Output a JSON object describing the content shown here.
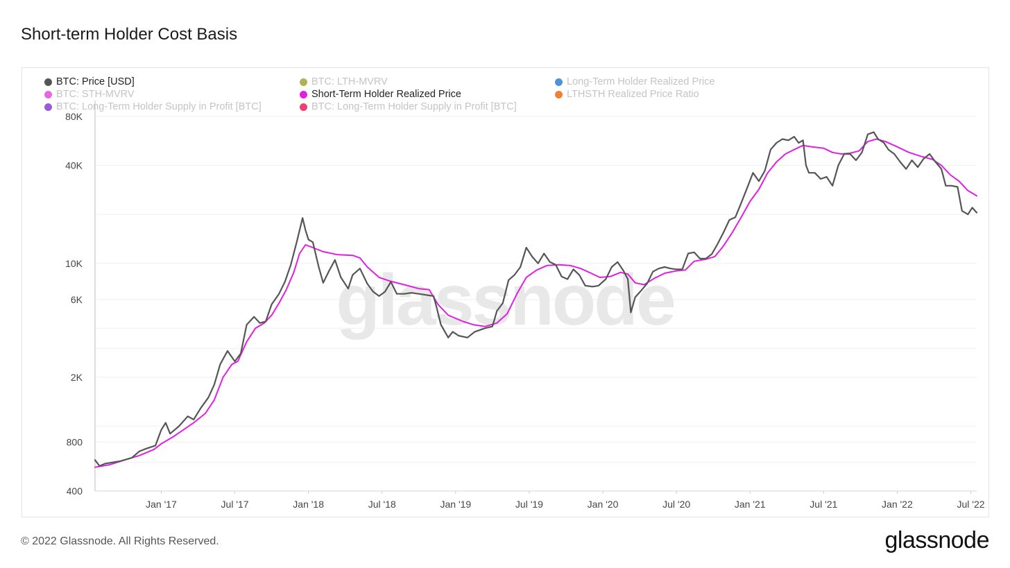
{
  "title": "Short-term Holder Cost Basis",
  "footer": "© 2022 Glassnode. All Rights Reserved.",
  "brand": "glassnode",
  "watermark": "glassnode",
  "legend": [
    {
      "label": "BTC: Price [USD]",
      "color": "#555555",
      "active": true
    },
    {
      "label": "BTC: LTH-MVRV",
      "color": "#a3a33a",
      "active": false
    },
    {
      "label": "Long-Term Holder Realized Price",
      "color": "#2f7fd6",
      "active": false
    },
    {
      "label": "BTC: STH-MVRV",
      "color": "#e04ddb",
      "active": false
    },
    {
      "label": "Short-Term Holder Realized Price",
      "color": "#e21ee3",
      "active": true
    },
    {
      "label": "LTHSTH Realized Price Ratio",
      "color": "#f06a13",
      "active": false
    },
    {
      "label": "BTC: Long-Term Holder Supply in Profit [BTC]",
      "color": "#8a3fd1",
      "active": false
    },
    {
      "label": "BTC: Long-Term Holder Supply in Profit [BTC]",
      "color": "#e81f5c",
      "active": false
    }
  ],
  "chart_data": {
    "type": "line",
    "title": "Short-term Holder Cost Basis",
    "yscale": "log",
    "ylim": [
      400,
      100000
    ],
    "xlim": [
      "2016-08",
      "2022-07"
    ],
    "yticks": [
      {
        "value": 400,
        "label": "400"
      },
      {
        "value": 800,
        "label": "800"
      },
      {
        "value": 2000,
        "label": "2K"
      },
      {
        "value": 6000,
        "label": "6K"
      },
      {
        "value": 10000,
        "label": "10K"
      },
      {
        "value": 40000,
        "label": "40K"
      },
      {
        "value": 80000,
        "label": "80K"
      }
    ],
    "xticks": [
      {
        "value": 2017.0,
        "label": "Jan '17"
      },
      {
        "value": 2017.5,
        "label": "Jul '17"
      },
      {
        "value": 2018.0,
        "label": "Jan '18"
      },
      {
        "value": 2018.5,
        "label": "Jul '18"
      },
      {
        "value": 2019.0,
        "label": "Jan '19"
      },
      {
        "value": 2019.5,
        "label": "Jul '19"
      },
      {
        "value": 2020.0,
        "label": "Jan '20"
      },
      {
        "value": 2020.5,
        "label": "Jul '20"
      },
      {
        "value": 2021.0,
        "label": "Jan '21"
      },
      {
        "value": 2021.5,
        "label": "Jul '21"
      },
      {
        "value": 2022.0,
        "label": "Jan '22"
      },
      {
        "value": 2022.5,
        "label": "Jul '22"
      }
    ],
    "series": [
      {
        "name": "BTC: Price [USD]",
        "color": "#555555",
        "points": [
          [
            2016.55,
            620
          ],
          [
            2016.58,
            570
          ],
          [
            2016.62,
            590
          ],
          [
            2016.67,
            600
          ],
          [
            2016.72,
            610
          ],
          [
            2016.8,
            640
          ],
          [
            2016.85,
            700
          ],
          [
            2016.9,
            730
          ],
          [
            2016.96,
            760
          ],
          [
            2017.0,
            950
          ],
          [
            2017.03,
            1050
          ],
          [
            2017.06,
            900
          ],
          [
            2017.12,
            1000
          ],
          [
            2017.18,
            1150
          ],
          [
            2017.22,
            1100
          ],
          [
            2017.27,
            1300
          ],
          [
            2017.32,
            1500
          ],
          [
            2017.36,
            1800
          ],
          [
            2017.4,
            2400
          ],
          [
            2017.45,
            2900
          ],
          [
            2017.5,
            2500
          ],
          [
            2017.54,
            2800
          ],
          [
            2017.58,
            4200
          ],
          [
            2017.63,
            4700
          ],
          [
            2017.67,
            4300
          ],
          [
            2017.71,
            4400
          ],
          [
            2017.75,
            5600
          ],
          [
            2017.8,
            6500
          ],
          [
            2017.84,
            7700
          ],
          [
            2017.88,
            9800
          ],
          [
            2017.92,
            13500
          ],
          [
            2017.96,
            19000
          ],
          [
            2017.98,
            16000
          ],
          [
            2018.0,
            14000
          ],
          [
            2018.03,
            13500
          ],
          [
            2018.07,
            9500
          ],
          [
            2018.1,
            7600
          ],
          [
            2018.14,
            9000
          ],
          [
            2018.18,
            10500
          ],
          [
            2018.22,
            8200
          ],
          [
            2018.27,
            7000
          ],
          [
            2018.3,
            8500
          ],
          [
            2018.35,
            9300
          ],
          [
            2018.4,
            7500
          ],
          [
            2018.44,
            6700
          ],
          [
            2018.48,
            6300
          ],
          [
            2018.52,
            6700
          ],
          [
            2018.56,
            7700
          ],
          [
            2018.6,
            6500
          ],
          [
            2018.65,
            6500
          ],
          [
            2018.7,
            6600
          ],
          [
            2018.75,
            6500
          ],
          [
            2018.8,
            6400
          ],
          [
            2018.85,
            6300
          ],
          [
            2018.87,
            5400
          ],
          [
            2018.9,
            4200
          ],
          [
            2018.95,
            3500
          ],
          [
            2018.98,
            3800
          ],
          [
            2019.02,
            3600
          ],
          [
            2019.08,
            3500
          ],
          [
            2019.13,
            3800
          ],
          [
            2019.2,
            4000
          ],
          [
            2019.25,
            4100
          ],
          [
            2019.28,
            5100
          ],
          [
            2019.32,
            5700
          ],
          [
            2019.36,
            7900
          ],
          [
            2019.4,
            8500
          ],
          [
            2019.44,
            9500
          ],
          [
            2019.48,
            12500
          ],
          [
            2019.52,
            11000
          ],
          [
            2019.56,
            10000
          ],
          [
            2019.6,
            11500
          ],
          [
            2019.64,
            10200
          ],
          [
            2019.68,
            9800
          ],
          [
            2019.72,
            8300
          ],
          [
            2019.76,
            8000
          ],
          [
            2019.8,
            9200
          ],
          [
            2019.84,
            8500
          ],
          [
            2019.88,
            7300
          ],
          [
            2019.93,
            7200
          ],
          [
            2019.97,
            7300
          ],
          [
            2020.02,
            8000
          ],
          [
            2020.06,
            9500
          ],
          [
            2020.1,
            10200
          ],
          [
            2020.14,
            9000
          ],
          [
            2020.17,
            8000
          ],
          [
            2020.19,
            5000
          ],
          [
            2020.22,
            6200
          ],
          [
            2020.26,
            6800
          ],
          [
            2020.3,
            7500
          ],
          [
            2020.34,
            8900
          ],
          [
            2020.38,
            9300
          ],
          [
            2020.42,
            9500
          ],
          [
            2020.46,
            9300
          ],
          [
            2020.5,
            9200
          ],
          [
            2020.54,
            9200
          ],
          [
            2020.58,
            11500
          ],
          [
            2020.62,
            11700
          ],
          [
            2020.66,
            10700
          ],
          [
            2020.7,
            10700
          ],
          [
            2020.74,
            11400
          ],
          [
            2020.78,
            13200
          ],
          [
            2020.82,
            15500
          ],
          [
            2020.86,
            18500
          ],
          [
            2020.9,
            19200
          ],
          [
            2020.94,
            23500
          ],
          [
            2020.98,
            29000
          ],
          [
            2021.02,
            36000
          ],
          [
            2021.06,
            32000
          ],
          [
            2021.1,
            37000
          ],
          [
            2021.14,
            50000
          ],
          [
            2021.18,
            55000
          ],
          [
            2021.22,
            58000
          ],
          [
            2021.26,
            57000
          ],
          [
            2021.3,
            60000
          ],
          [
            2021.33,
            55000
          ],
          [
            2021.36,
            57000
          ],
          [
            2021.38,
            40000
          ],
          [
            2021.4,
            36000
          ],
          [
            2021.44,
            36000
          ],
          [
            2021.48,
            33000
          ],
          [
            2021.52,
            34000
          ],
          [
            2021.56,
            30000
          ],
          [
            2021.6,
            40000
          ],
          [
            2021.64,
            47000
          ],
          [
            2021.68,
            47000
          ],
          [
            2021.72,
            43000
          ],
          [
            2021.76,
            48000
          ],
          [
            2021.8,
            62000
          ],
          [
            2021.84,
            64000
          ],
          [
            2021.87,
            58000
          ],
          [
            2021.91,
            55000
          ],
          [
            2021.94,
            50000
          ],
          [
            2021.98,
            47000
          ],
          [
            2022.02,
            42000
          ],
          [
            2022.06,
            38000
          ],
          [
            2022.1,
            43000
          ],
          [
            2022.14,
            39000
          ],
          [
            2022.18,
            44000
          ],
          [
            2022.22,
            47000
          ],
          [
            2022.26,
            42000
          ],
          [
            2022.3,
            38000
          ],
          [
            2022.33,
            30000
          ],
          [
            2022.37,
            30000
          ],
          [
            2022.41,
            29500
          ],
          [
            2022.44,
            21000
          ],
          [
            2022.48,
            20000
          ],
          [
            2022.51,
            22000
          ],
          [
            2022.54,
            20500
          ]
        ]
      },
      {
        "name": "Short-Term Holder Realized Price",
        "color": "#e21ee3",
        "points": [
          [
            2016.55,
            560
          ],
          [
            2016.65,
            580
          ],
          [
            2016.75,
            620
          ],
          [
            2016.85,
            660
          ],
          [
            2016.95,
            720
          ],
          [
            2017.0,
            780
          ],
          [
            2017.08,
            860
          ],
          [
            2017.15,
            950
          ],
          [
            2017.22,
            1050
          ],
          [
            2017.3,
            1200
          ],
          [
            2017.36,
            1450
          ],
          [
            2017.42,
            2000
          ],
          [
            2017.48,
            2400
          ],
          [
            2017.52,
            2500
          ],
          [
            2017.58,
            3300
          ],
          [
            2017.64,
            4000
          ],
          [
            2017.7,
            4300
          ],
          [
            2017.75,
            4800
          ],
          [
            2017.8,
            5700
          ],
          [
            2017.85,
            6900
          ],
          [
            2017.9,
            8800
          ],
          [
            2017.94,
            11500
          ],
          [
            2017.98,
            13000
          ],
          [
            2018.03,
            12500
          ],
          [
            2018.1,
            11800
          ],
          [
            2018.2,
            11300
          ],
          [
            2018.3,
            11200
          ],
          [
            2018.35,
            10800
          ],
          [
            2018.4,
            9500
          ],
          [
            2018.48,
            8200
          ],
          [
            2018.55,
            7800
          ],
          [
            2018.65,
            7400
          ],
          [
            2018.75,
            7000
          ],
          [
            2018.82,
            6900
          ],
          [
            2018.88,
            5600
          ],
          [
            2018.95,
            4800
          ],
          [
            2019.05,
            4400
          ],
          [
            2019.12,
            4200
          ],
          [
            2019.2,
            4100
          ],
          [
            2019.28,
            4300
          ],
          [
            2019.35,
            4900
          ],
          [
            2019.42,
            6600
          ],
          [
            2019.48,
            8200
          ],
          [
            2019.55,
            9100
          ],
          [
            2019.62,
            9700
          ],
          [
            2019.7,
            9800
          ],
          [
            2019.78,
            9700
          ],
          [
            2019.85,
            9300
          ],
          [
            2019.92,
            8700
          ],
          [
            2019.98,
            8200
          ],
          [
            2020.05,
            8300
          ],
          [
            2020.12,
            8800
          ],
          [
            2020.17,
            8600
          ],
          [
            2020.22,
            7600
          ],
          [
            2020.28,
            7400
          ],
          [
            2020.35,
            8100
          ],
          [
            2020.42,
            8700
          ],
          [
            2020.5,
            9000
          ],
          [
            2020.56,
            9100
          ],
          [
            2020.62,
            10300
          ],
          [
            2020.7,
            10600
          ],
          [
            2020.76,
            11000
          ],
          [
            2020.82,
            12800
          ],
          [
            2020.88,
            15500
          ],
          [
            2020.94,
            19200
          ],
          [
            2021.0,
            24000
          ],
          [
            2021.06,
            28500
          ],
          [
            2021.12,
            36000
          ],
          [
            2021.18,
            42000
          ],
          [
            2021.24,
            47000
          ],
          [
            2021.3,
            50000
          ],
          [
            2021.36,
            53000
          ],
          [
            2021.42,
            52000
          ],
          [
            2021.5,
            51000
          ],
          [
            2021.56,
            48000
          ],
          [
            2021.62,
            47000
          ],
          [
            2021.68,
            47500
          ],
          [
            2021.74,
            49000
          ],
          [
            2021.8,
            56000
          ],
          [
            2021.86,
            58000
          ],
          [
            2021.92,
            56000
          ],
          [
            2022.0,
            52000
          ],
          [
            2022.08,
            48000
          ],
          [
            2022.16,
            45500
          ],
          [
            2022.24,
            43500
          ],
          [
            2022.3,
            40000
          ],
          [
            2022.36,
            35000
          ],
          [
            2022.42,
            32000
          ],
          [
            2022.48,
            28000
          ],
          [
            2022.54,
            26000
          ]
        ]
      }
    ]
  }
}
